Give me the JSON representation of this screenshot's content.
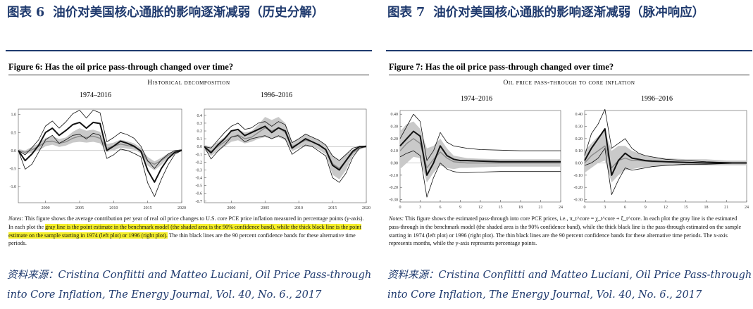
{
  "left_panel": {
    "cn_title_prefix": "图表",
    "cn_title_num": "6",
    "cn_title": "油价对美国核心通胀的影响逐渐减弱（历史分解）",
    "figure_title": "Figure 6: Has the oil price pass-through changed over time?",
    "figure_subtitle": "Historical decomposition",
    "notes_label": "Notes:",
    "notes_part1": " This figure shows the average contribution per year of real oil price changes to U.S. core PCE price inflation measured in percentage points (y-axis). In each plot the ",
    "notes_highlight": "gray line is the point estimate in the benchmark model (the shaded area is the 90% confidence band), while the thick black line is the point estimate on the sample starting in 1974 (left plot) or 1996 (right plot).",
    "notes_part2": " The thin black lines are the 90 percent confidence bands for these alternative time periods.",
    "source_label": "资料来源：",
    "source_text": "Cristina Conflitti and Matteo Luciani, Oil Price Pass-through into Core Inflation, The Energy Journal, Vol. 40, No. 6., 2017"
  },
  "right_panel": {
    "cn_title_prefix": "图表",
    "cn_title_num": "7",
    "cn_title": "油价对美国核心通胀的影响逐渐减弱（脉冲响应）",
    "figure_title": "Figure 7: Has the oil price pass-through changed over time?",
    "figure_subtitle": "Oil price pass-through to core inflation",
    "notes_label": "Notes:",
    "notes_text": " This figure shows the estimated pass-through into core PCE prices, i.e., π_t^core = χ_t^core + ξ_t^core. In each plot the gray line is the estimated pass-through in the benchmark model (the shaded area is the 90% confidence band), while the thick black line is the pass-through estimated on the sample starting in 1974 (left plot) or 1996 (right plot). The thin black lines are the 90 percent confidence bands for these alternative time periods. The x-axis represents months, while the y-axis represents percentage points.",
    "source_label": "资料来源：",
    "source_text": "Cristina Conflitti and Matteo Luciani, Oil Price Pass-through into Core Inflation, The Energy Journal, Vol. 40, No. 6., 2017"
  },
  "chart_data": [
    {
      "type": "line",
      "title": "1974–2016",
      "x": [
        1996,
        1997,
        1998,
        1999,
        2000,
        2001,
        2002,
        2003,
        2004,
        2005,
        2006,
        2007,
        2008,
        2009,
        2010,
        2011,
        2012,
        2013,
        2014,
        2015,
        2016,
        2017,
        2018,
        2019,
        2020
      ],
      "xticks": [
        2000,
        2005,
        2010,
        2015,
        2020
      ],
      "xlim": [
        1996,
        2020
      ],
      "ylim": [
        -1.45,
        1.15
      ],
      "yticks": [
        1.0,
        0.5,
        0.0,
        -0.5,
        -1.0
      ],
      "ytick_labels": [
        "1.0",
        "0.5",
        "0.0",
        "-0.5",
        "-1.0"
      ],
      "series": [
        {
          "role": "band",
          "upper": [
            0.04,
            0.0,
            0.1,
            0.2,
            0.35,
            0.4,
            0.32,
            0.36,
            0.52,
            0.62,
            0.55,
            0.58,
            0.52,
            0.18,
            0.22,
            0.3,
            0.26,
            0.2,
            0.08,
            -0.18,
            -0.3,
            -0.2,
            -0.08,
            0.0,
            0.02
          ],
          "lower": [
            -0.06,
            -0.1,
            -0.06,
            0.0,
            0.12,
            0.16,
            0.1,
            0.14,
            0.22,
            0.24,
            0.22,
            0.24,
            0.2,
            -0.04,
            0.0,
            0.08,
            0.05,
            0.02,
            -0.08,
            -0.42,
            -0.55,
            -0.4,
            -0.2,
            -0.06,
            -0.02
          ]
        },
        {
          "role": "gray",
          "values": [
            0.0,
            -0.05,
            0.02,
            0.12,
            0.24,
            0.26,
            0.2,
            0.24,
            0.34,
            0.4,
            0.36,
            0.4,
            0.34,
            0.06,
            0.12,
            0.18,
            0.14,
            0.1,
            0.0,
            -0.3,
            -0.38,
            -0.28,
            -0.14,
            -0.03,
            0.0
          ]
        },
        {
          "role": "thick",
          "values": [
            0.0,
            -0.28,
            -0.1,
            0.15,
            0.5,
            0.62,
            0.42,
            0.56,
            0.72,
            0.78,
            0.62,
            0.78,
            0.75,
            0.0,
            0.12,
            0.26,
            0.2,
            0.12,
            -0.02,
            -0.55,
            -0.88,
            -0.5,
            -0.22,
            -0.05,
            0.0
          ]
        },
        {
          "role": "thin",
          "values": [
            0.0,
            -0.12,
            0.08,
            0.3,
            0.68,
            0.82,
            0.62,
            0.8,
            1.02,
            1.12,
            0.9,
            1.12,
            1.05,
            0.24,
            0.36,
            0.5,
            0.44,
            0.34,
            0.12,
            -0.28,
            -0.5,
            -0.26,
            -0.1,
            0.0,
            0.02
          ]
        },
        {
          "role": "thin",
          "values": [
            0.0,
            -0.52,
            -0.38,
            -0.04,
            0.3,
            0.42,
            0.2,
            0.3,
            0.42,
            0.45,
            0.32,
            0.48,
            0.42,
            -0.22,
            -0.12,
            0.04,
            0.0,
            -0.08,
            -0.18,
            -0.9,
            -1.28,
            -0.8,
            -0.4,
            -0.1,
            0.0
          ]
        }
      ]
    },
    {
      "type": "line",
      "title": "1996–2016",
      "x": [
        1996,
        1997,
        1998,
        1999,
        2000,
        2001,
        2002,
        2003,
        2004,
        2005,
        2006,
        2007,
        2008,
        2009,
        2010,
        2011,
        2012,
        2013,
        2014,
        2015,
        2016,
        2017,
        2018,
        2019,
        2020
      ],
      "xticks": [
        2000,
        2005,
        2010,
        2015,
        2020
      ],
      "xlim": [
        1996,
        2020
      ],
      "ylim": [
        -0.72,
        0.48
      ],
      "yticks": [
        0.4,
        0.3,
        0.2,
        0.1,
        0.0,
        -0.1,
        -0.2,
        -0.3,
        -0.4,
        -0.5,
        -0.6,
        -0.7
      ],
      "ytick_labels": [
        "0.4",
        "0.3",
        "0.2",
        "0.1",
        "0.0",
        "-0.1",
        "-0.2",
        "-0.3",
        "-0.4",
        "-0.5",
        "-0.6",
        "-0.7"
      ],
      "series": [
        {
          "role": "band",
          "upper": [
            0.02,
            0.0,
            0.06,
            0.12,
            0.2,
            0.22,
            0.18,
            0.2,
            0.28,
            0.38,
            0.34,
            0.38,
            0.3,
            0.06,
            0.1,
            0.16,
            0.12,
            0.08,
            0.02,
            -0.12,
            -0.18,
            -0.1,
            -0.04,
            0.0,
            0.01
          ],
          "lower": [
            -0.04,
            -0.12,
            -0.06,
            0.0,
            0.06,
            0.08,
            0.04,
            0.06,
            0.1,
            0.12,
            0.1,
            0.12,
            0.08,
            -0.06,
            -0.02,
            0.02,
            0.0,
            -0.04,
            -0.1,
            -0.36,
            -0.42,
            -0.3,
            -0.12,
            -0.04,
            -0.01
          ]
        },
        {
          "role": "gray",
          "values": [
            0.0,
            -0.06,
            0.0,
            0.06,
            0.12,
            0.15,
            0.1,
            0.12,
            0.18,
            0.24,
            0.2,
            0.24,
            0.18,
            0.0,
            0.04,
            0.08,
            0.06,
            0.02,
            -0.04,
            -0.22,
            -0.28,
            -0.18,
            -0.08,
            -0.02,
            0.0
          ]
        },
        {
          "role": "thick",
          "values": [
            0.0,
            -0.08,
            0.02,
            0.1,
            0.2,
            0.22,
            0.14,
            0.18,
            0.22,
            0.26,
            0.18,
            0.24,
            0.2,
            -0.02,
            0.04,
            0.1,
            0.06,
            0.02,
            -0.04,
            -0.24,
            -0.3,
            -0.18,
            -0.06,
            0.0,
            0.0
          ]
        },
        {
          "role": "thin",
          "values": [
            0.0,
            -0.02,
            0.08,
            0.18,
            0.26,
            0.3,
            0.22,
            0.24,
            0.3,
            0.32,
            0.26,
            0.32,
            0.28,
            0.05,
            0.1,
            0.16,
            0.12,
            0.08,
            0.02,
            -0.12,
            -0.18,
            -0.1,
            -0.02,
            0.0,
            0.01
          ]
        },
        {
          "role": "thin",
          "values": [
            0.0,
            -0.16,
            -0.06,
            0.02,
            0.12,
            0.14,
            0.06,
            0.1,
            0.12,
            0.14,
            0.1,
            0.14,
            0.1,
            -0.1,
            -0.04,
            0.02,
            0.0,
            -0.06,
            -0.12,
            -0.4,
            -0.46,
            -0.34,
            -0.14,
            -0.02,
            0.0
          ]
        }
      ]
    },
    {
      "type": "line",
      "title": "1974–2016",
      "x": [
        0,
        1,
        2,
        3,
        4,
        5,
        6,
        7,
        8,
        9,
        10,
        12,
        15,
        18,
        21,
        24
      ],
      "xticks": [
        0,
        3,
        6,
        9,
        12,
        15,
        18,
        21,
        24
      ],
      "xlim": [
        0,
        24
      ],
      "ylim": [
        -0.32,
        0.43
      ],
      "yticks": [
        0.4,
        0.3,
        0.2,
        0.1,
        0.0,
        -0.1,
        -0.2,
        -0.3
      ],
      "ytick_labels": [
        "0.40",
        "0.30",
        "0.20",
        "0.10",
        "0.00",
        "-0.10",
        "-0.20",
        "-0.30"
      ],
      "series": [
        {
          "role": "band",
          "upper": [
            0.26,
            0.32,
            0.34,
            0.28,
            0.12,
            0.14,
            0.2,
            0.12,
            0.06,
            0.05,
            0.04,
            0.035,
            0.03,
            0.03,
            0.03,
            0.03
          ],
          "lower": [
            -0.05,
            0.0,
            0.05,
            0.04,
            -0.16,
            -0.08,
            -0.02,
            -0.04,
            -0.05,
            -0.04,
            -0.04,
            -0.035,
            -0.03,
            -0.03,
            -0.03,
            -0.03
          ]
        },
        {
          "role": "gray",
          "values": [
            0.1,
            0.16,
            0.2,
            0.16,
            -0.04,
            0.03,
            0.09,
            0.04,
            0.01,
            0.005,
            0.0,
            0.0,
            0.0,
            0.0,
            0.0,
            0.0
          ]
        },
        {
          "role": "thick",
          "values": [
            0.14,
            0.2,
            0.26,
            0.22,
            -0.1,
            0.0,
            0.14,
            0.06,
            0.03,
            0.02,
            0.02,
            0.015,
            0.01,
            0.01,
            0.01,
            0.01
          ]
        },
        {
          "role": "thin",
          "values": [
            0.2,
            0.3,
            0.4,
            0.34,
            0.02,
            0.1,
            0.25,
            0.17,
            0.14,
            0.13,
            0.12,
            0.11,
            0.105,
            0.1,
            0.1,
            0.1
          ]
        },
        {
          "role": "thin",
          "values": [
            0.05,
            0.08,
            0.1,
            0.06,
            -0.28,
            -0.12,
            0.0,
            -0.05,
            -0.07,
            -0.08,
            -0.08,
            -0.075,
            -0.07,
            -0.07,
            -0.07,
            -0.07
          ]
        }
      ]
    },
    {
      "type": "line",
      "title": "1996–2016",
      "x": [
        0,
        1,
        2,
        3,
        4,
        5,
        6,
        7,
        8,
        9,
        10,
        12,
        15,
        18,
        21,
        24
      ],
      "xticks": [
        0,
        3,
        6,
        9,
        12,
        15,
        18,
        21,
        24
      ],
      "xlim": [
        0,
        24
      ],
      "ylim": [
        -0.32,
        0.43
      ],
      "yticks": [
        0.4,
        0.3,
        0.2,
        0.1,
        0.0,
        -0.1,
        -0.2,
        -0.3
      ],
      "ytick_labels": [
        "0.40",
        "0.30",
        "0.20",
        "0.10",
        "0.00",
        "-0.10",
        "-0.20",
        "-0.30"
      ],
      "series": [
        {
          "role": "band",
          "upper": [
            0.1,
            0.16,
            0.22,
            0.26,
            0.1,
            0.14,
            0.14,
            0.1,
            0.08,
            0.06,
            0.05,
            0.04,
            0.03,
            0.03,
            0.02,
            0.02
          ],
          "lower": [
            -0.08,
            -0.04,
            0.0,
            0.02,
            -0.16,
            -0.1,
            -0.06,
            -0.05,
            -0.04,
            -0.035,
            -0.03,
            -0.025,
            -0.02,
            -0.02,
            -0.02,
            -0.02
          ]
        },
        {
          "role": "gray",
          "values": [
            0.0,
            0.06,
            0.1,
            0.14,
            -0.04,
            0.02,
            0.04,
            0.02,
            0.02,
            0.015,
            0.01,
            0.01,
            0.005,
            0.0,
            0.0,
            0.0
          ]
        },
        {
          "role": "thick",
          "values": [
            0.02,
            0.12,
            0.2,
            0.28,
            -0.1,
            0.02,
            0.08,
            0.04,
            0.03,
            0.02,
            0.015,
            0.01,
            0.005,
            0.0,
            0.0,
            0.0
          ]
        },
        {
          "role": "thin",
          "values": [
            0.06,
            0.24,
            0.32,
            0.44,
            0.12,
            0.16,
            0.2,
            0.12,
            0.08,
            0.06,
            0.05,
            0.03,
            0.02,
            0.01,
            0.005,
            0.0
          ]
        },
        {
          "role": "thin",
          "values": [
            -0.02,
            0.0,
            0.04,
            0.12,
            -0.26,
            -0.14,
            -0.04,
            -0.06,
            -0.05,
            -0.04,
            -0.03,
            -0.02,
            -0.01,
            -0.01,
            -0.005,
            0.0
          ]
        }
      ]
    }
  ]
}
